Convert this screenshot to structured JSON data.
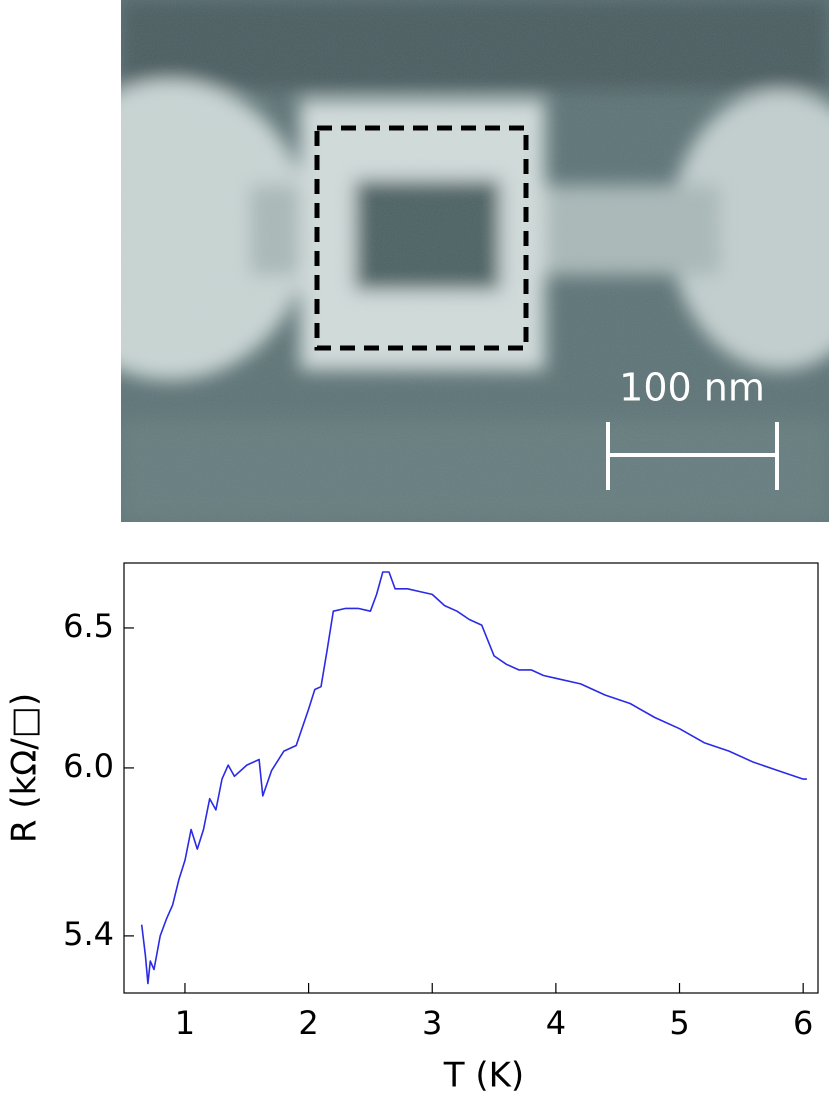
{
  "image": {
    "scale_bar": "100 nm"
  },
  "chart_data": {
    "type": "line",
    "x_label": "T (K)",
    "y_label": "R (kΩ/□)",
    "x": [
      0.65,
      0.68,
      0.7,
      0.72,
      0.75,
      0.8,
      0.85,
      0.9,
      0.95,
      1.0,
      1.05,
      1.1,
      1.15,
      1.2,
      1.25,
      1.3,
      1.35,
      1.4,
      1.5,
      1.6,
      1.63,
      1.7,
      1.8,
      1.9,
      2.0,
      2.05,
      2.1,
      2.15,
      2.2,
      2.3,
      2.4,
      2.5,
      2.55,
      2.6,
      2.65,
      2.7,
      2.8,
      2.9,
      3.0,
      3.1,
      3.2,
      3.3,
      3.4,
      3.5,
      3.6,
      3.7,
      3.8,
      3.9,
      4.0,
      4.2,
      4.4,
      4.6,
      4.8,
      5.0,
      5.2,
      5.4,
      5.6,
      5.8,
      6.0,
      6.03
    ],
    "values": [
      5.44,
      5.33,
      5.23,
      5.31,
      5.28,
      5.4,
      5.46,
      5.51,
      5.6,
      5.67,
      5.78,
      5.71,
      5.78,
      5.89,
      5.85,
      5.96,
      6.01,
      5.97,
      6.01,
      6.03,
      5.9,
      5.99,
      6.06,
      6.08,
      6.21,
      6.28,
      6.29,
      6.42,
      6.56,
      6.57,
      6.57,
      6.56,
      6.62,
      6.7,
      6.7,
      6.64,
      6.64,
      6.63,
      6.62,
      6.58,
      6.56,
      6.53,
      6.51,
      6.4,
      6.37,
      6.35,
      6.35,
      6.33,
      6.32,
      6.3,
      6.26,
      6.23,
      6.18,
      6.14,
      6.09,
      6.06,
      6.02,
      5.99,
      5.96,
      5.96
    ],
    "color": "#2b2be6",
    "xlim": [
      0.507,
      6.12
    ],
    "ylim": [
      5.196,
      6.732
    ],
    "xticks": [
      1,
      2,
      3,
      4,
      5,
      6
    ],
    "yticks": [
      5.4,
      {
        "value": 6,
        "label": "6.0"
      },
      6.5
    ]
  }
}
